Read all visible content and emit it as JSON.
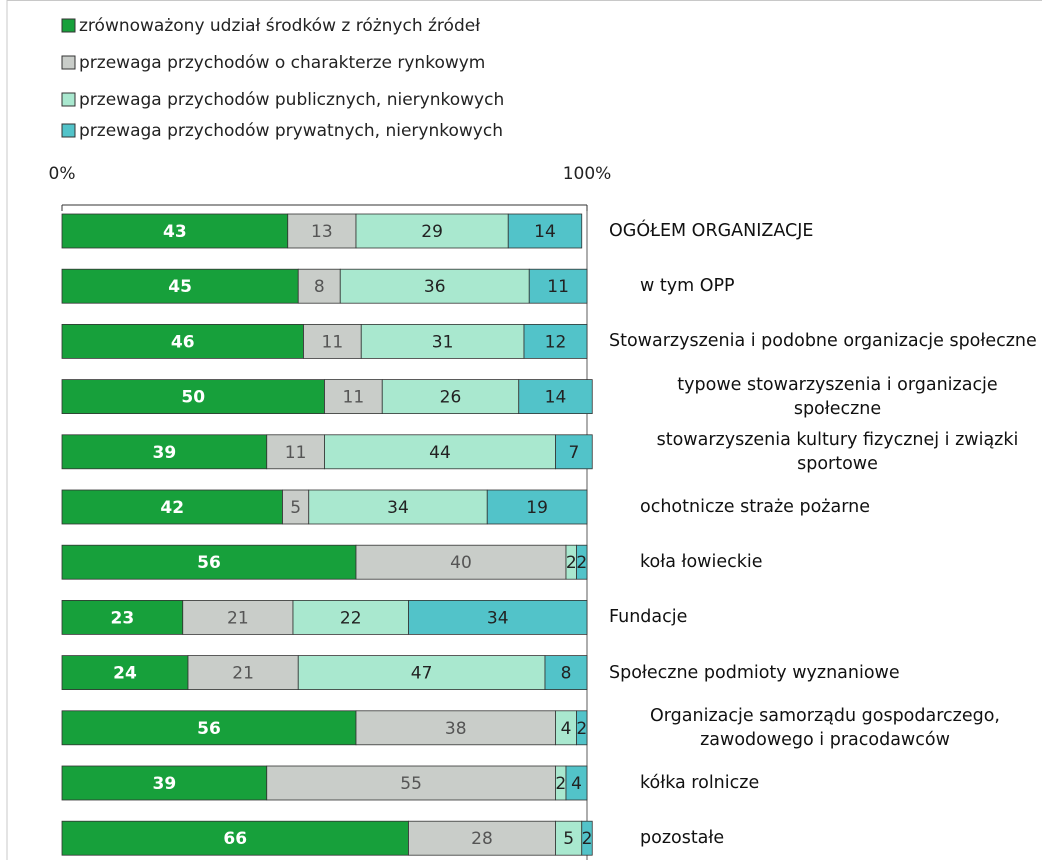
{
  "chart_data": {
    "type": "stacked_bar_horizontal",
    "categories": [
      "OGÓŁEM ORGANIZACJE",
      "w tym OPP",
      "Stowarzyszenia i podobne organizacje społeczne",
      "typowe stowarzyszenia i organizacje społeczne",
      "stowarzyszenia kultury fizycznej i związki sportowe",
      "ochotnicze straże pożarne",
      "koła łowieckie",
      "Fundacje",
      "Społeczne podmioty wyznaniowe",
      "Organizacje samorządu gospodarczego, zawodowego i pracodawców",
      "kółka rolnicze",
      "pozostałe"
    ],
    "series": [
      {
        "name": "zrównoważony udział środków z różnych źródeł",
        "color": "#17a03b",
        "values": [
          43,
          45,
          46,
          50,
          39,
          42,
          56,
          23,
          24,
          56,
          39,
          66
        ]
      },
      {
        "name": "przewaga przychodów o charakterze rynkowym",
        "color": "#c9cdc9",
        "values": [
          13,
          8,
          11,
          11,
          11,
          5,
          40,
          21,
          21,
          38,
          55,
          28
        ]
      },
      {
        "name": "przewaga przychodów publicznych, nierynkowych",
        "color": "#a9e8cf",
        "values": [
          29,
          36,
          31,
          26,
          44,
          34,
          2,
          22,
          47,
          4,
          2,
          5
        ]
      },
      {
        "name": "przewaga przychodów prywatnych, nierynkowych",
        "color": "#52c3c9",
        "values": [
          14,
          11,
          12,
          14,
          7,
          19,
          2,
          34,
          8,
          2,
          4,
          2
        ]
      }
    ],
    "xlim": [
      0,
      100
    ],
    "xticks": [
      {
        "value": 0,
        "label": "0%"
      },
      {
        "value": 100,
        "label": "100%"
      }
    ]
  }
}
